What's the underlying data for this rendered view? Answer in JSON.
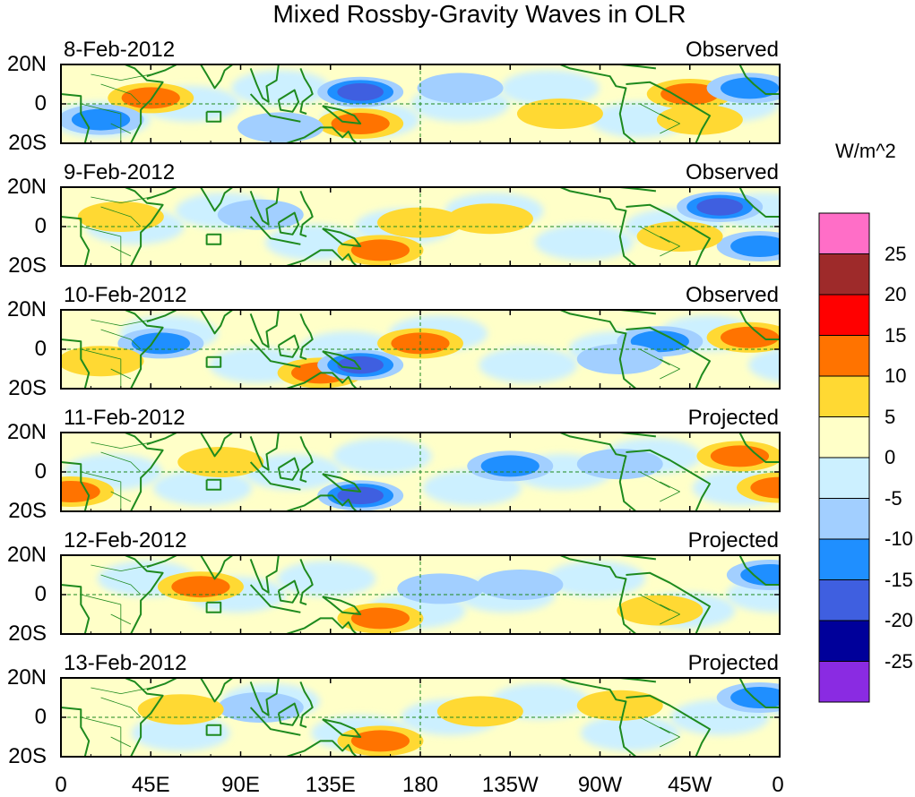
{
  "figure": {
    "title": "Mixed Rossby-Gravity Waves in OLR",
    "y_ticks": [
      "20N",
      "0",
      "20S"
    ],
    "x_ticks": [
      "0",
      "45E",
      "90E",
      "135E",
      "180",
      "135W",
      "90W",
      "45W",
      "0"
    ],
    "panels": [
      {
        "date": "8-Feb-2012",
        "status": "Observed"
      },
      {
        "date": "9-Feb-2012",
        "status": "Observed"
      },
      {
        "date": "10-Feb-2012",
        "status": "Observed"
      },
      {
        "date": "11-Feb-2012",
        "status": "Projected"
      },
      {
        "date": "12-Feb-2012",
        "status": "Projected"
      },
      {
        "date": "13-Feb-2012",
        "status": "Projected"
      }
    ]
  },
  "colorbar": {
    "unit": "W/m^2",
    "labels": [
      "25",
      "20",
      "15",
      "10",
      "5",
      "0",
      "-5",
      "-10",
      "-15",
      "-20",
      "-25"
    ],
    "colors": [
      "#ff6ec7",
      "#9e2a2a",
      "#ff0000",
      "#ff7300",
      "#ffd933",
      "#ffffc8",
      "#ccf0ff",
      "#a2cfff",
      "#1f8fff",
      "#3f5fe0",
      "#00009a",
      "#8a2be2"
    ]
  },
  "legend_colors": {
    "coast": "#1e8a1e",
    "border": "#1e8a1e",
    "equator": "#1e8a1e"
  },
  "anomaly_features": [
    [
      {
        "lon": 45,
        "lat": 3,
        "value": 10
      },
      {
        "lon": 150,
        "lat": 6,
        "value": -15
      },
      {
        "lon": 150,
        "lat": -10,
        "value": 10
      },
      {
        "lon": 20,
        "lat": -8,
        "value": -10
      },
      {
        "lon": 250,
        "lat": -5,
        "value": 5
      },
      {
        "lon": 315,
        "lat": 5,
        "value": 10
      },
      {
        "lon": 345,
        "lat": 8,
        "value": -10
      },
      {
        "lon": 320,
        "lat": -8,
        "value": 5
      },
      {
        "lon": 200,
        "lat": 8,
        "value": -5
      },
      {
        "lon": 110,
        "lat": -12,
        "value": -5
      }
    ],
    [
      {
        "lon": 160,
        "lat": -12,
        "value": 12
      },
      {
        "lon": 180,
        "lat": 2,
        "value": 8
      },
      {
        "lon": 215,
        "lat": 4,
        "value": 8
      },
      {
        "lon": 330,
        "lat": 10,
        "value": -15
      },
      {
        "lon": 350,
        "lat": -10,
        "value": -10
      },
      {
        "lon": 30,
        "lat": 5,
        "value": 5
      },
      {
        "lon": 100,
        "lat": 6,
        "value": -8
      },
      {
        "lon": 310,
        "lat": -5,
        "value": 5
      }
    ],
    [
      {
        "lon": 180,
        "lat": 3,
        "value": 12
      },
      {
        "lon": 130,
        "lat": -12,
        "value": 10
      },
      {
        "lon": 150,
        "lat": -8,
        "value": -15
      },
      {
        "lon": 50,
        "lat": 3,
        "value": -10
      },
      {
        "lon": 345,
        "lat": 6,
        "value": 12
      },
      {
        "lon": 300,
        "lat": 4,
        "value": -10
      },
      {
        "lon": 280,
        "lat": -5,
        "value": -8
      },
      {
        "lon": 20,
        "lat": -6,
        "value": 5
      }
    ],
    [
      {
        "lon": 150,
        "lat": -12,
        "value": -15
      },
      {
        "lon": 80,
        "lat": 5,
        "value": 8
      },
      {
        "lon": 340,
        "lat": 8,
        "value": 12
      },
      {
        "lon": 360,
        "lat": -8,
        "value": 12
      },
      {
        "lon": 225,
        "lat": 3,
        "value": -10
      },
      {
        "lon": 5,
        "lat": -10,
        "value": 10
      },
      {
        "lon": 280,
        "lat": 4,
        "value": -5
      }
    ],
    [
      {
        "lon": 70,
        "lat": 4,
        "value": 10
      },
      {
        "lon": 160,
        "lat": -12,
        "value": 10
      },
      {
        "lon": 300,
        "lat": -8,
        "value": 8
      },
      {
        "lon": 230,
        "lat": 5,
        "value": -8
      },
      {
        "lon": 355,
        "lat": 10,
        "value": -10
      },
      {
        "lon": 190,
        "lat": 3,
        "value": -5
      }
    ],
    [
      {
        "lon": 160,
        "lat": -12,
        "value": 10
      },
      {
        "lon": 210,
        "lat": 3,
        "value": 8
      },
      {
        "lon": 280,
        "lat": 6,
        "value": 8
      },
      {
        "lon": 350,
        "lat": 10,
        "value": -10
      },
      {
        "lon": 100,
        "lat": 5,
        "value": -5
      },
      {
        "lon": 60,
        "lat": 4,
        "value": 5
      }
    ]
  ]
}
